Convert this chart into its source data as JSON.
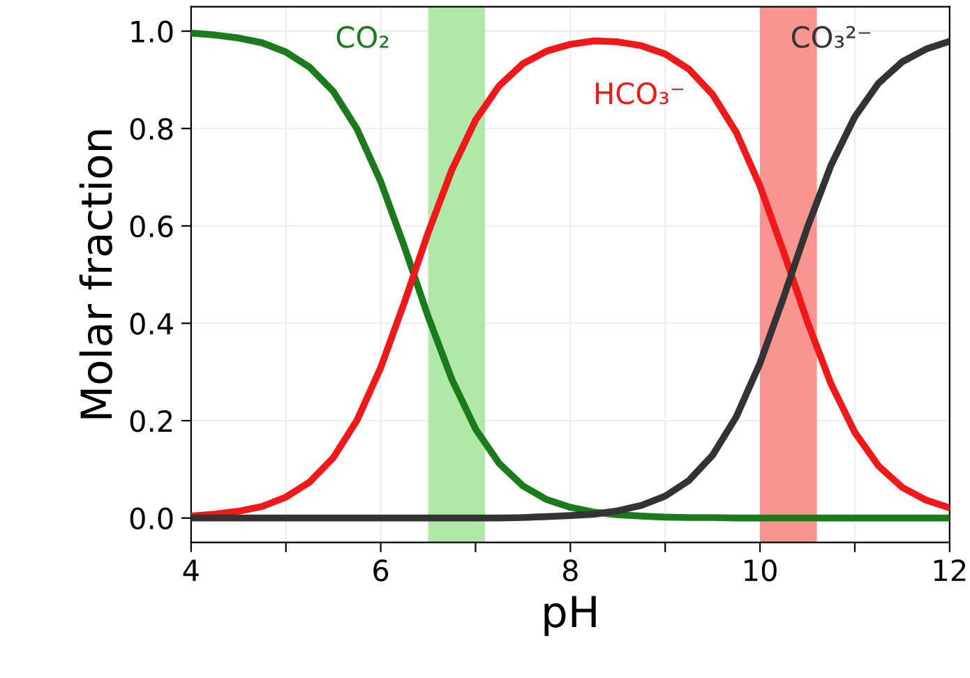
{
  "chart_data": {
    "type": "line",
    "xlabel": "pH",
    "ylabel": "Molar fraction",
    "x": [
      4,
      4.25,
      4.5,
      4.75,
      5,
      5.25,
      5.5,
      5.75,
      6,
      6.25,
      6.5,
      6.75,
      7,
      7.25,
      7.5,
      7.75,
      8,
      8.25,
      8.5,
      8.75,
      9,
      9.25,
      9.5,
      9.75,
      10,
      10.25,
      10.5,
      10.75,
      11,
      11.25,
      11.5,
      11.75,
      12
    ],
    "series": [
      {
        "name": "CO₂",
        "color": "#1b7a1b",
        "values": [
          0.996,
          0.992,
          0.986,
          0.976,
          0.957,
          0.926,
          0.876,
          0.799,
          0.691,
          0.557,
          0.414,
          0.285,
          0.183,
          0.112,
          0.066,
          0.038,
          0.022,
          0.012,
          0.007,
          0.004,
          0.002,
          0.001,
          0.001,
          0,
          0,
          0,
          0,
          0,
          0,
          0,
          0,
          0,
          0
        ]
      },
      {
        "name": "HCO₃⁻",
        "color": "#f01818",
        "values": [
          0.004,
          0.008,
          0.014,
          0.024,
          0.043,
          0.074,
          0.124,
          0.201,
          0.309,
          0.443,
          0.586,
          0.715,
          0.817,
          0.888,
          0.933,
          0.959,
          0.973,
          0.98,
          0.978,
          0.97,
          0.953,
          0.922,
          0.87,
          0.792,
          0.682,
          0.546,
          0.403,
          0.275,
          0.176,
          0.107,
          0.063,
          0.037,
          0.021
        ]
      },
      {
        "name": "CO₃²⁻",
        "color": "#333333",
        "values": [
          0,
          0,
          0,
          0,
          0,
          0,
          0,
          0,
          0,
          0,
          0,
          0,
          0,
          0,
          0.001,
          0.003,
          0.005,
          0.008,
          0.015,
          0.026,
          0.045,
          0.077,
          0.129,
          0.208,
          0.318,
          0.454,
          0.597,
          0.725,
          0.824,
          0.893,
          0.937,
          0.963,
          0.979
        ]
      }
    ],
    "bands": [
      {
        "axis": "x",
        "from": 6.5,
        "to": 7.1,
        "color": "#a8e6a0"
      },
      {
        "axis": "x",
        "from": 10.0,
        "to": 10.6,
        "color": "#f78a84"
      }
    ],
    "xlim": [
      4,
      12
    ],
    "ylim": [
      -0.05,
      1.05
    ],
    "xticks": [
      4,
      {
        "value": 5,
        "label": null
      },
      6,
      {
        "value": 7,
        "label": null
      },
      8,
      {
        "value": 9,
        "label": null
      },
      10,
      {
        "value": 11,
        "label": null
      },
      12
    ],
    "yticks": [
      {
        "value": 0,
        "label": "0.0"
      },
      {
        "value": 0.2,
        "label": "0.2"
      },
      {
        "value": 0.4,
        "label": "0.4"
      },
      {
        "value": 0.6,
        "label": "0.6"
      },
      {
        "value": 0.8,
        "label": "0.8"
      },
      {
        "value": 1.0,
        "label": "1.0"
      }
    ],
    "grid": true,
    "legend": false,
    "line_style": "solid",
    "marker": "none"
  }
}
